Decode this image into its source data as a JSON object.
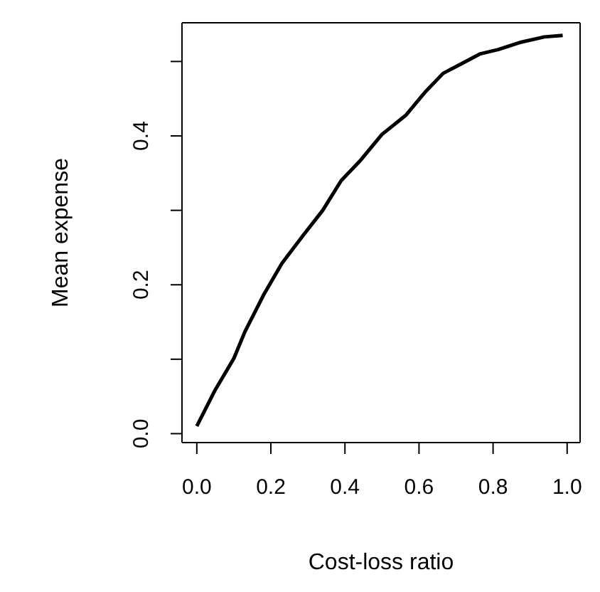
{
  "chart_data": {
    "type": "line",
    "xlabel": "Cost-loss ratio",
    "ylabel": "Mean expense",
    "x": [
      0,
      0.05,
      0.1,
      0.13,
      0.18,
      0.23,
      0.285,
      0.34,
      0.39,
      0.44,
      0.5,
      0.565,
      0.615,
      0.665,
      0.715,
      0.764,
      0.814,
      0.876,
      0.938,
      0.988
    ],
    "series": [
      {
        "color": "#000000",
        "values": [
          0.01,
          0.059,
          0.101,
          0.137,
          0.186,
          0.229,
          0.265,
          0.3,
          0.34,
          0.366,
          0.402,
          0.428,
          0.458,
          0.484,
          0.497,
          0.51,
          0.516,
          0.526,
          0.533,
          0.535
        ]
      }
    ],
    "xlim": [
      -0.04,
      1.035
    ],
    "xticks": [
      {
        "value": 0,
        "label": "0.0"
      },
      0.2,
      0.4,
      0.6,
      0.8,
      {
        "value": 1,
        "label": "1.0"
      }
    ],
    "ylim": [
      -0.012,
      0.552
    ],
    "yticks": [
      {
        "value": 0,
        "label": "0.0"
      },
      {
        "value": 0.1,
        "label": null
      },
      0.2,
      {
        "value": 0.3,
        "label": null
      },
      0.4,
      {
        "value": 0.5,
        "label": null
      }
    ],
    "grid": false,
    "legend": false,
    "marker": "none",
    "line_style": "solid"
  }
}
